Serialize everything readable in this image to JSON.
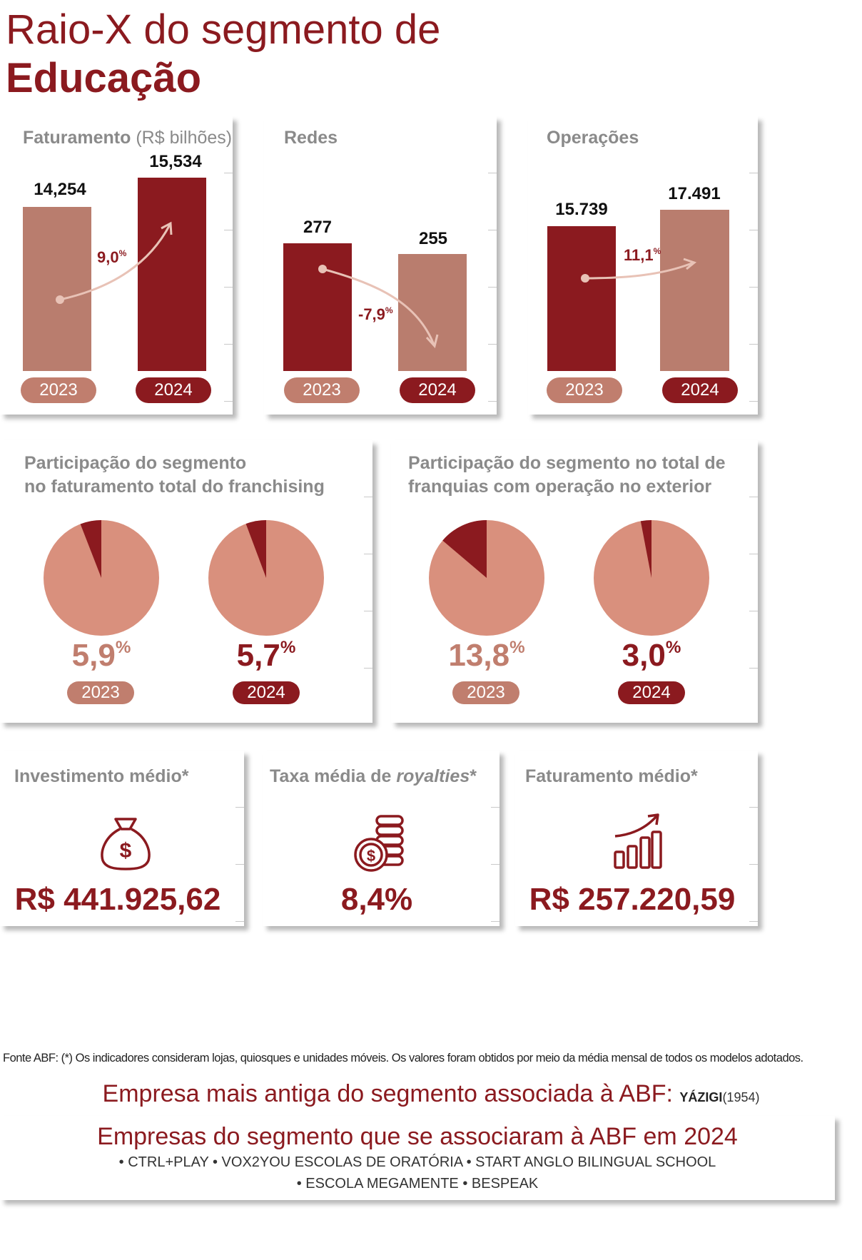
{
  "header": {
    "title_line1": "Raio-X do segmento de",
    "title_line2": "Educação"
  },
  "colors": {
    "dark": "#8b1a1f",
    "light_bar": "#b97d6e",
    "light_pie": "#d9907d",
    "pill_light": "#c07e6e"
  },
  "chart_data": [
    {
      "type": "bar",
      "title": "Faturamento",
      "title_suffix": "(R$ bilhões)",
      "categories": [
        "2023",
        "2024"
      ],
      "values": [
        14.254,
        15.534
      ],
      "labels": [
        "14,254",
        "15,534"
      ],
      "change": "9,0",
      "change_unit": "%"
    },
    {
      "type": "bar",
      "title": "Redes",
      "title_suffix": "",
      "categories": [
        "2023",
        "2024"
      ],
      "values": [
        277,
        255
      ],
      "labels": [
        "277",
        "255"
      ],
      "change": "-7,9",
      "change_unit": "%"
    },
    {
      "type": "bar",
      "title": "Operações",
      "title_suffix": "",
      "categories": [
        "2023",
        "2024"
      ],
      "values": [
        15739,
        17491
      ],
      "labels": [
        "15.739",
        "17.491"
      ],
      "change": "11,1",
      "change_unit": "%"
    },
    {
      "type": "pie",
      "title_line1": "Participação do segmento",
      "title_line2": "no faturamento total do franchising",
      "categories": [
        "2023",
        "2024"
      ],
      "values": [
        5.9,
        5.7
      ],
      "labels": [
        "5,9",
        "5,7"
      ],
      "unit": "%"
    },
    {
      "type": "pie",
      "title_line1": "Participação do segmento no total de",
      "title_line2": "franquias com operação no exterior",
      "categories": [
        "2023",
        "2024"
      ],
      "values": [
        13.8,
        3.0
      ],
      "labels": [
        "13,8",
        "3,0"
      ],
      "unit": "%"
    }
  ],
  "kpis": [
    {
      "title": "Investimento médio*",
      "icon": "money-bag-icon",
      "value": "R$ 441.925,62"
    },
    {
      "title_pre": "Taxa média de ",
      "title_em": "royalties",
      "title_post": "*",
      "icon": "coins-icon",
      "value": "8,4%"
    },
    {
      "title": "Faturamento médio*",
      "icon": "growth-chart-icon",
      "value": "R$ 257.220,59"
    }
  ],
  "footnote": "Fonte ABF: (*) Os indicadores consideram lojas, quiosques e unidades móveis. Os valores foram obtidos por meio da média mensal de todos os modelos adotados.",
  "oldest": {
    "label": "Empresa mais antiga do segmento associada à ABF:",
    "company": "YÁZIGI",
    "year": "(1954)"
  },
  "new_members": {
    "title": "Empresas do segmento que se associaram à ABF em 2024",
    "line1": "• CTRL+PLAY • VOX2YOU ESCOLAS DE ORATÓRIA • START ANGLO BILINGUAL SCHOOL",
    "line2": "• ESCOLA MEGAMENTE • BESPEAK"
  }
}
